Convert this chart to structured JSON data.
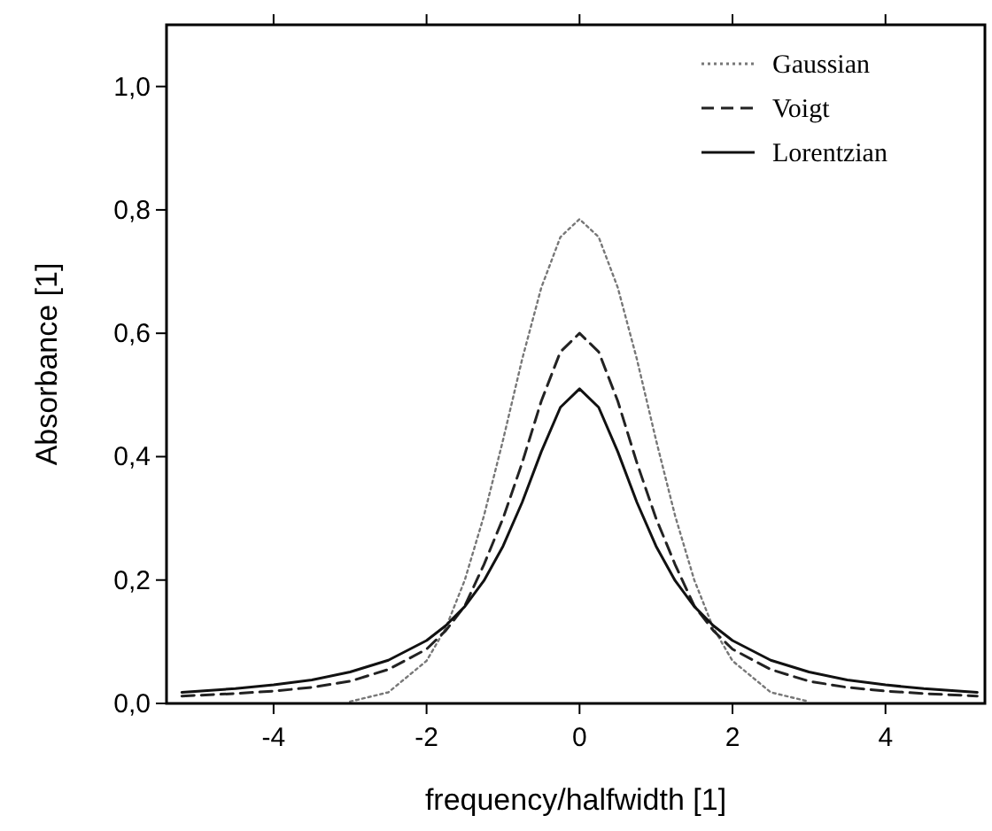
{
  "chart_data": {
    "type": "line",
    "xlabel": "frequency/halfwidth [1]",
    "ylabel": "Absorbance [1]",
    "xlim": [
      -5.4,
      5.3
    ],
    "ylim": [
      0,
      1.1
    ],
    "xticks": [
      -4,
      -2,
      0,
      2,
      4
    ],
    "yticks": [
      {
        "value": 0,
        "label": "0,0"
      },
      {
        "value": 0.2,
        "label": "0,2"
      },
      {
        "value": 0.4,
        "label": "0,4"
      },
      {
        "value": 0.6,
        "label": "0,6"
      },
      {
        "value": 0.8,
        "label": "0,8"
      },
      {
        "value": 1,
        "label": "1,0"
      }
    ],
    "legend": "top right",
    "grid": false,
    "x": [
      -5.2,
      -4.5,
      -4,
      -3.5,
      -3,
      -2.5,
      -2,
      -1.75,
      -1.5,
      -1.25,
      -1,
      -0.75,
      -0.5,
      -0.25,
      0,
      0.25,
      0.5,
      0.75,
      1,
      1.25,
      1.5,
      1.75,
      2,
      2.5,
      3,
      3.5,
      4,
      4.5,
      5.2
    ],
    "series": [
      {
        "name": "Gaussian",
        "color": "#777777",
        "line_style": "dotted",
        "x": [
          -3,
          -2.5,
          -2,
          -1.75,
          -1.5,
          -1.25,
          -1,
          -0.75,
          -0.5,
          -0.25,
          0,
          0.25,
          0.5,
          0.75,
          1,
          1.25,
          1.5,
          1.75,
          2,
          2.5,
          3
        ],
        "values": [
          0.003,
          0.018,
          0.069,
          0.122,
          0.2,
          0.304,
          0.427,
          0.558,
          0.674,
          0.756,
          0.785,
          0.756,
          0.674,
          0.558,
          0.427,
          0.304,
          0.2,
          0.122,
          0.069,
          0.018,
          0.003
        ]
      },
      {
        "name": "Voigt",
        "color": "#222222",
        "line_style": "dashed",
        "values": [
          0.012,
          0.016,
          0.02,
          0.026,
          0.036,
          0.055,
          0.088,
          0.118,
          0.158,
          0.225,
          0.3,
          0.39,
          0.49,
          0.57,
          0.6,
          0.57,
          0.49,
          0.39,
          0.3,
          0.225,
          0.158,
          0.118,
          0.088,
          0.055,
          0.036,
          0.026,
          0.02,
          0.016,
          0.012
        ]
      },
      {
        "name": "Lorentzian",
        "color": "#111111",
        "line_style": "solid",
        "values": [
          0.018,
          0.024,
          0.03,
          0.038,
          0.051,
          0.07,
          0.102,
          0.126,
          0.157,
          0.199,
          0.255,
          0.326,
          0.408,
          0.48,
          0.51,
          0.48,
          0.408,
          0.326,
          0.255,
          0.199,
          0.157,
          0.126,
          0.102,
          0.07,
          0.051,
          0.038,
          0.03,
          0.024,
          0.018
        ]
      }
    ]
  }
}
